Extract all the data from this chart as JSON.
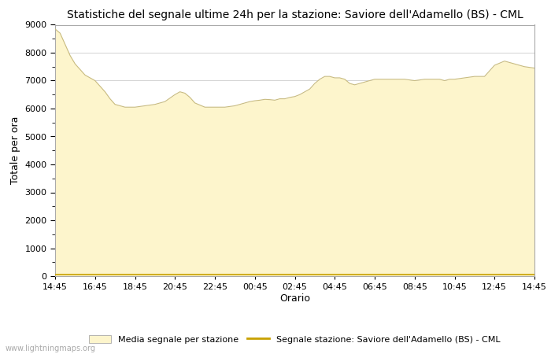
{
  "title": "Statistiche del segnale ultime 24h per la stazione: Saviore dell'Adamello (BS) - CML",
  "xlabel": "Orario",
  "ylabel": "Totale per ora",
  "xlim": [
    0,
    24
  ],
  "ylim": [
    0,
    9000
  ],
  "yticks": [
    0,
    1000,
    2000,
    3000,
    4000,
    5000,
    6000,
    7000,
    8000,
    9000
  ],
  "xtick_labels": [
    "14:45",
    "16:45",
    "18:45",
    "20:45",
    "22:45",
    "00:45",
    "02:45",
    "04:45",
    "06:45",
    "08:45",
    "10:45",
    "12:45",
    "14:45"
  ],
  "fill_color": "#fdf5cc",
  "fill_edge_color": "#c8bb80",
  "line_color": "#c8a000",
  "background_color": "#ffffff",
  "grid_color": "#cccccc",
  "title_fontsize": 10,
  "axis_fontsize": 9,
  "tick_fontsize": 8,
  "legend_label_fill": "Media segnale per stazione",
  "legend_label_line": "Segnale stazione: Saviore dell'Adamello (BS) - CML",
  "watermark": "www.lightningmaps.org",
  "x_values": [
    0.0,
    0.25,
    0.5,
    0.75,
    1.0,
    1.25,
    1.5,
    1.75,
    2.0,
    2.25,
    2.5,
    2.75,
    3.0,
    3.5,
    4.0,
    4.5,
    5.0,
    5.5,
    6.0,
    6.25,
    6.5,
    6.75,
    7.0,
    7.5,
    8.0,
    8.5,
    9.0,
    9.25,
    9.5,
    9.75,
    10.0,
    10.25,
    10.5,
    10.75,
    11.0,
    11.25,
    11.5,
    11.75,
    12.0,
    12.25,
    12.5,
    12.75,
    13.0,
    13.25,
    13.5,
    13.75,
    14.0,
    14.25,
    14.5,
    14.75,
    15.0,
    15.25,
    15.5,
    15.75,
    16.0,
    16.25,
    16.5,
    16.75,
    17.0,
    17.5,
    18.0,
    18.5,
    19.0,
    19.25,
    19.5,
    19.75,
    20.0,
    20.5,
    21.0,
    21.5,
    22.0,
    22.5,
    23.0,
    23.5,
    24.0
  ],
  "y_values": [
    8850,
    8700,
    8300,
    7900,
    7600,
    7400,
    7200,
    7100,
    7000,
    6800,
    6600,
    6350,
    6150,
    6050,
    6050,
    6100,
    6150,
    6250,
    6500,
    6600,
    6550,
    6400,
    6200,
    6050,
    6050,
    6050,
    6100,
    6150,
    6200,
    6250,
    6280,
    6300,
    6330,
    6320,
    6300,
    6350,
    6350,
    6400,
    6430,
    6500,
    6600,
    6700,
    6900,
    7050,
    7150,
    7150,
    7100,
    7100,
    7050,
    6900,
    6850,
    6900,
    6950,
    7000,
    7050,
    7050,
    7050,
    7050,
    7050,
    7050,
    7000,
    7050,
    7050,
    7050,
    7000,
    7050,
    7050,
    7100,
    7150,
    7150,
    7550,
    7700,
    7600,
    7500,
    7450
  ],
  "y_line_values": [
    50,
    50,
    50,
    50,
    50,
    50,
    50,
    50,
    50,
    50,
    50,
    50,
    50,
    50,
    50,
    50,
    50,
    50,
    50,
    50,
    50,
    50,
    50,
    50,
    50,
    50,
    50,
    50,
    50,
    50,
    50,
    50,
    50,
    50,
    50,
    50,
    50,
    50,
    50,
    50,
    50,
    50,
    50,
    50,
    50,
    50,
    50,
    50,
    50,
    50,
    50,
    50,
    50,
    50,
    50,
    50,
    50,
    50,
    50,
    50,
    50,
    50,
    50,
    50,
    50,
    50,
    50,
    50,
    50,
    50,
    50,
    50,
    50,
    50,
    50
  ]
}
